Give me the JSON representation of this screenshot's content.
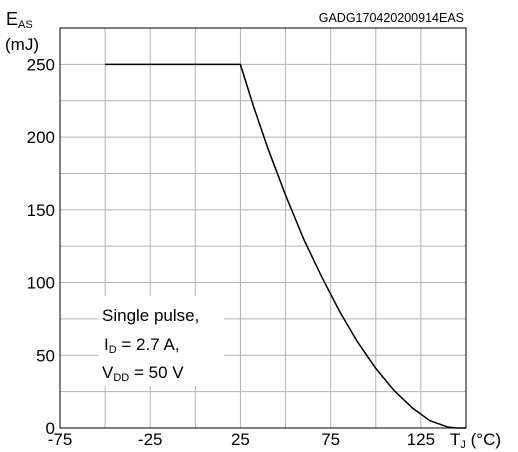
{
  "chart_data": {
    "type": "line",
    "code": "GADG170420200914EAS",
    "ylabel": {
      "main": "E",
      "sub": "AS",
      "unit": "(mJ)"
    },
    "xlabel": {
      "main": "T",
      "sub": "J",
      "unit": " (°C)"
    },
    "xlim": [
      -75,
      150
    ],
    "ylim": [
      0,
      275
    ],
    "x_ticks": [
      -75,
      -25,
      25,
      75,
      125
    ],
    "y_ticks": [
      0,
      50,
      100,
      150,
      200,
      250
    ],
    "grid": true,
    "series": [
      {
        "x": [
          -50,
          25,
          32,
          40,
          50,
          60,
          70,
          80,
          90,
          100,
          110,
          120,
          130,
          140,
          145,
          150
        ],
        "y": [
          250,
          250,
          222,
          193,
          160,
          130,
          104,
          80,
          59,
          41,
          26,
          14,
          5,
          0.6,
          0,
          0
        ]
      }
    ],
    "annotation": {
      "line1": "Single pulse,",
      "line2": {
        "main": "I",
        "sub": "D",
        "rest": " = 2.7 A,"
      },
      "line3": {
        "main": "V",
        "sub": "DD",
        "rest": " = 50 V"
      }
    }
  }
}
